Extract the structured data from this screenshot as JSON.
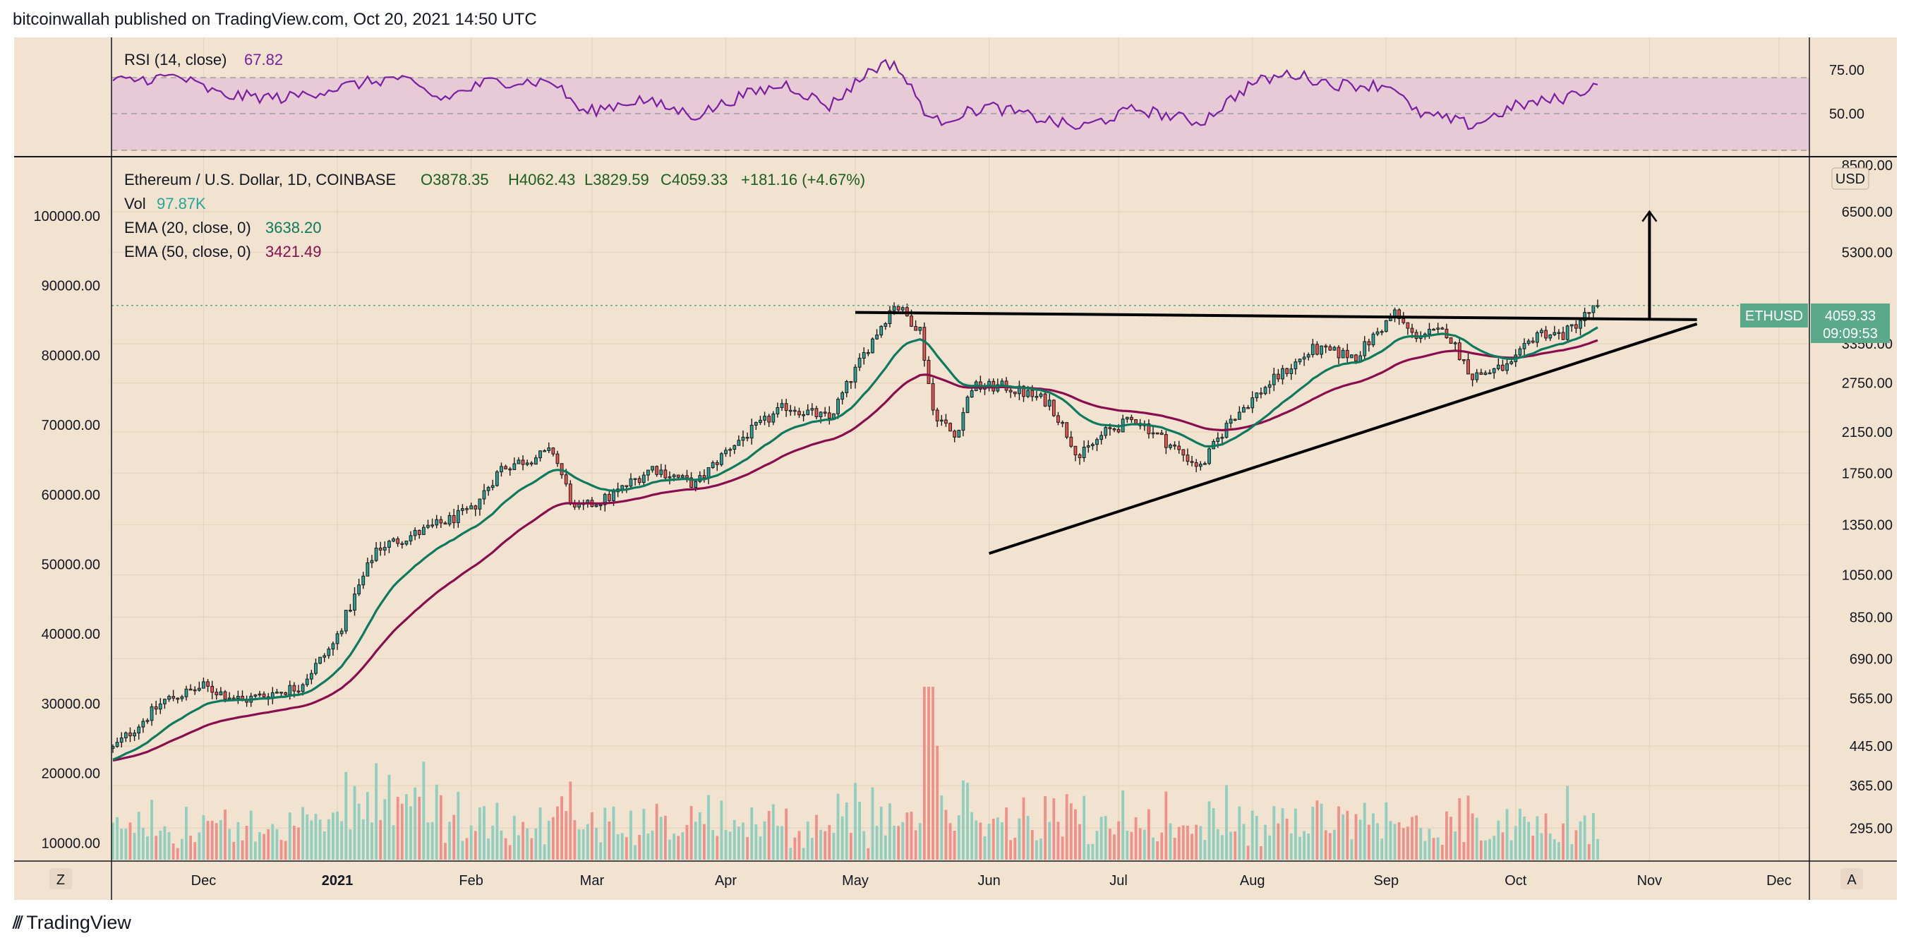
{
  "header": {
    "published": "bitcoinwallah published on TradingView.com, Oct 20, 2021 14:50 UTC"
  },
  "footer": {
    "brand": "TradingView",
    "logo_icon": "tradingview-logo-icon"
  },
  "colors": {
    "background": "#f2e2d0",
    "up": "#26a69a",
    "down": "#ef5350",
    "ema20": "#0d7a5f",
    "ema50": "#880e4f",
    "rsi": "#7b1fa2",
    "rsi_band": "#e7cad6",
    "badge": "#5aa98a"
  },
  "rsi_panel": {
    "title": "RSI (14, close)",
    "value": "67.82",
    "scale_ticks": [
      "75.00",
      "50.00"
    ]
  },
  "legend": {
    "symbol": "Ethereum / U.S. Dollar, 1D, COINBASE",
    "open": "O3878.35",
    "high": "H4062.43",
    "low": "L3829.59",
    "close": "C4059.33",
    "change": "+181.16 (+4.67%)",
    "vol_label": "Vol",
    "vol_value": "97.87K",
    "ema20_label": "EMA (20, close, 0)",
    "ema20_value": "3638.20",
    "ema50_label": "EMA (50, close, 0)",
    "ema50_value": "3421.49"
  },
  "price_scale": {
    "currency": "USD",
    "top_partial": "8500.00",
    "ticks": [
      "6500.00",
      "5300.00",
      "3350.00",
      "2750.00",
      "2150.00",
      "1750.00",
      "1350.00",
      "1050.00",
      "850.00",
      "690.00",
      "565.00",
      "445.00",
      "365.00",
      "295.00"
    ]
  },
  "volume_scale": {
    "ticks": [
      "100000.00",
      "90000.00",
      "80000.00",
      "70000.00",
      "60000.00",
      "50000.00",
      "40000.00",
      "30000.00",
      "20000.00",
      "10000.00"
    ]
  },
  "price_badge": {
    "symbol": "ETHUSD",
    "price": "4059.33",
    "countdown": "09:09:53"
  },
  "time_axis": {
    "labels": [
      "Dec",
      "2021",
      "Feb",
      "Mar",
      "Apr",
      "May",
      "Jun",
      "Jul",
      "Aug",
      "Sep",
      "Oct",
      "Nov",
      "Dec"
    ],
    "left_button": "Z",
    "right_button": "A"
  },
  "chart_data": {
    "type": "candlestick",
    "symbol": "ETHUSD",
    "interval": "1D",
    "scale": "log",
    "x_range": [
      "2020-11-10",
      "2021-12-31"
    ],
    "price_range": [
      250,
      8500
    ],
    "rsi_range": [
      20,
      100
    ],
    "rsi_bands": [
      70,
      50,
      30
    ],
    "last_close": 4059.33,
    "price_path": [
      [
        "2020-11-10",
        440
      ],
      [
        "2020-11-22",
        560
      ],
      [
        "2020-12-01",
        600
      ],
      [
        "2020-12-10",
        560
      ],
      [
        "2020-12-23",
        600
      ],
      [
        "2020-12-31",
        740
      ],
      [
        "2021-01-10",
        1200
      ],
      [
        "2021-01-20",
        1300
      ],
      [
        "2021-02-01",
        1450
      ],
      [
        "2021-02-08",
        1800
      ],
      [
        "2021-02-20",
        1950
      ],
      [
        "2021-02-25",
        1450
      ],
      [
        "2021-03-05",
        1550
      ],
      [
        "2021-03-15",
        1800
      ],
      [
        "2021-03-25",
        1650
      ],
      [
        "2021-04-02",
        2000
      ],
      [
        "2021-04-15",
        2450
      ],
      [
        "2021-04-25",
        2300
      ],
      [
        "2021-05-04",
        3300
      ],
      [
        "2021-05-10",
        4100
      ],
      [
        "2021-05-16",
        3600
      ],
      [
        "2021-05-19",
        2400
      ],
      [
        "2021-05-24",
        2100
      ],
      [
        "2021-05-28",
        2700
      ],
      [
        "2021-06-05",
        2700
      ],
      [
        "2021-06-15",
        2500
      ],
      [
        "2021-06-22",
        1900
      ],
      [
        "2021-06-28",
        2150
      ],
      [
        "2021-07-05",
        2300
      ],
      [
        "2021-07-12",
        2050
      ],
      [
        "2021-07-20",
        1800
      ],
      [
        "2021-07-27",
        2300
      ],
      [
        "2021-08-05",
        2750
      ],
      [
        "2021-08-15",
        3250
      ],
      [
        "2021-08-25",
        3150
      ],
      [
        "2021-09-03",
        3900
      ],
      [
        "2021-09-07",
        3500
      ],
      [
        "2021-09-15",
        3550
      ],
      [
        "2021-09-21",
        2850
      ],
      [
        "2021-09-30",
        3000
      ],
      [
        "2021-10-06",
        3550
      ],
      [
        "2021-10-12",
        3500
      ],
      [
        "2021-10-17",
        3850
      ],
      [
        "2021-10-20",
        4059
      ]
    ],
    "ema20_last": 3638.2,
    "ema50_last": 3421.49,
    "rsi_path": [
      [
        "2020-11-10",
        70
      ],
      [
        "2020-11-25",
        74
      ],
      [
        "2020-12-05",
        60
      ],
      [
        "2020-12-20",
        58
      ],
      [
        "2021-01-05",
        68
      ],
      [
        "2021-01-15",
        73
      ],
      [
        "2021-01-25",
        57
      ],
      [
        "2021-02-05",
        70
      ],
      [
        "2021-02-20",
        70
      ],
      [
        "2021-02-27",
        47
      ],
      [
        "2021-03-12",
        57
      ],
      [
        "2021-03-25",
        45
      ],
      [
        "2021-04-05",
        60
      ],
      [
        "2021-04-15",
        68
      ],
      [
        "2021-04-25",
        52
      ],
      [
        "2021-05-05",
        80
      ],
      [
        "2021-05-10",
        84
      ],
      [
        "2021-05-19",
        40
      ],
      [
        "2021-06-01",
        52
      ],
      [
        "2021-06-10",
        45
      ],
      [
        "2021-06-22",
        36
      ],
      [
        "2021-07-05",
        50
      ],
      [
        "2021-07-20",
        40
      ],
      [
        "2021-08-01",
        69
      ],
      [
        "2021-08-10",
        76
      ],
      [
        "2021-08-20",
        68
      ],
      [
        "2021-09-03",
        67
      ],
      [
        "2021-09-07",
        48
      ],
      [
        "2021-09-21",
        38
      ],
      [
        "2021-10-01",
        52
      ],
      [
        "2021-10-12",
        58
      ],
      [
        "2021-10-20",
        67.82
      ]
    ],
    "annotations": [
      {
        "type": "trendline",
        "name": "resistance",
        "from": [
          "2021-05-01",
          3920
        ],
        "to": [
          "2021-11-12",
          3780
        ]
      },
      {
        "type": "trendline",
        "name": "support",
        "from": [
          "2021-06-01",
          1170
        ],
        "to": [
          "2021-11-12",
          3700
        ]
      },
      {
        "type": "arrow",
        "name": "breakout-target",
        "from": [
          "2021-11-01",
          3780
        ],
        "to": [
          "2021-11-01",
          6500
        ]
      }
    ]
  }
}
